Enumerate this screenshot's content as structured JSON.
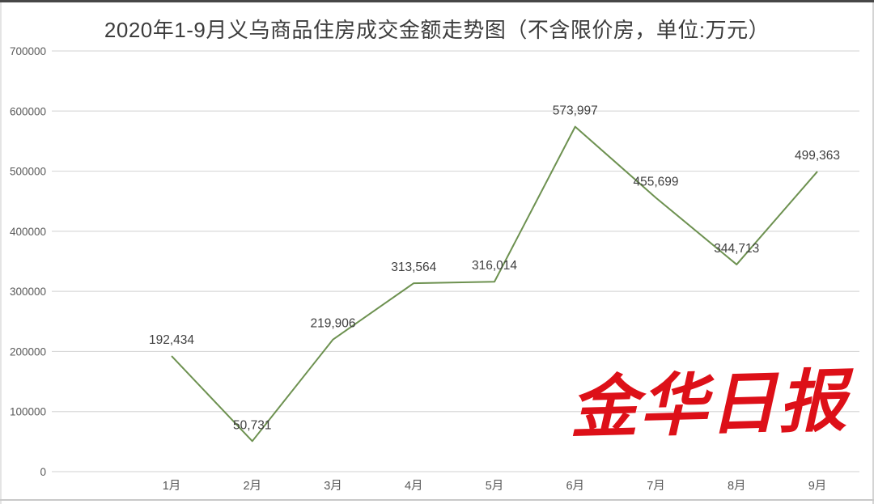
{
  "title": "2020年1-9月义乌商品住房成交金额走势图（不含限价房，单位:万元）",
  "watermark": {
    "text": "金华日报",
    "color": "#dd1018"
  },
  "chart_data": {
    "type": "line",
    "title": "2020年1-9月义乌商品住房成交金额走势图（不含限价房，单位:万元）",
    "categories": [
      "1月",
      "2月",
      "3月",
      "4月",
      "5月",
      "6月",
      "7月",
      "8月",
      "9月"
    ],
    "values": [
      192434,
      50731,
      219906,
      313564,
      316014,
      573997,
      455699,
      344713,
      499363
    ],
    "labels": [
      "192,434",
      "50,731",
      "219,906",
      "313,564",
      "316,014",
      "573,997",
      "455,699",
      "344,713",
      "499,363"
    ],
    "xlabel": "",
    "ylabel": "",
    "ylim": [
      0,
      700000
    ],
    "yticks": [
      0,
      100000,
      200000,
      300000,
      400000,
      500000,
      600000,
      700000
    ],
    "ytick_labels": [
      "0",
      "100000",
      "200000",
      "300000",
      "400000",
      "500000",
      "600000",
      "700000"
    ],
    "grid": "horizontal",
    "legend": "none",
    "line_color": "#6d9150",
    "gridline_color": "#d9d9d9",
    "axis_label_color": "#595959",
    "data_label_color": "#404040",
    "background": "#ffffff"
  }
}
